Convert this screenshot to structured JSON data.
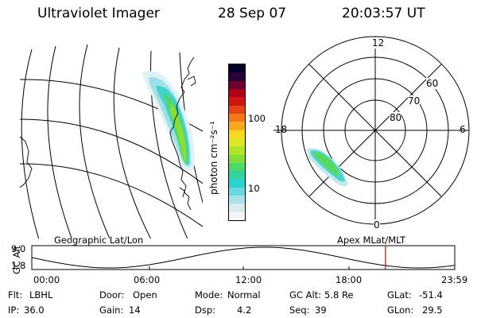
{
  "header": {
    "title": "Ultraviolet Imager",
    "date": "28 Sep 07",
    "time": "20:03:57 UT"
  },
  "colorbar": {
    "unit_label": "photon cm⁻²s⁻¹",
    "ticks": [
      "100",
      "10"
    ],
    "colors": [
      "#f4f4f4",
      "#d8ecf0",
      "#a6e2e8",
      "#66d8de",
      "#2cd2d0",
      "#34d49e",
      "#4ed86a",
      "#80de3c",
      "#b0e42a",
      "#dce826",
      "#f6da22",
      "#f8a81e",
      "#f27818",
      "#e44414",
      "#d01410",
      "#b0001c",
      "#6e0030",
      "#2a0038",
      "#000028"
    ]
  },
  "geo_panel": {
    "label": "Geographic Lat/Lon"
  },
  "polar_panel": {
    "label": "Apex MLat/MLT",
    "mlt_labels": {
      "top": "12",
      "left": "18",
      "right": "6",
      "bottom": "0"
    },
    "lat_labels": [
      "60",
      "70",
      "80"
    ]
  },
  "altitude_plot": {
    "ylabel": "GC Alt",
    "yticks": [
      "9.0",
      "1.8"
    ],
    "xticks": [
      "00:00",
      "06:00",
      "12:00",
      "18:00",
      "23:59"
    ],
    "current_time_hours": 20.07
  },
  "info": {
    "filter_label": "Flt:",
    "filter_value": "LBHL",
    "ip_label": "IP:",
    "ip_value": "36.0",
    "door_label": "Door:",
    "door_value": "Open",
    "gain_label": "Gain:",
    "gain_value": "14",
    "mode_label": "Mode:",
    "mode_value": "Normal",
    "dsp_label": "Dsp:",
    "dsp_value": "4.2",
    "gcalt_label": "GC Alt:",
    "gcalt_value": "5.8 Re",
    "seq_label": "Seq:",
    "seq_value": "39",
    "glat_label": "GLat:",
    "glat_value": "-51.4",
    "glon_label": "GLon:",
    "glon_value": "29.5"
  }
}
